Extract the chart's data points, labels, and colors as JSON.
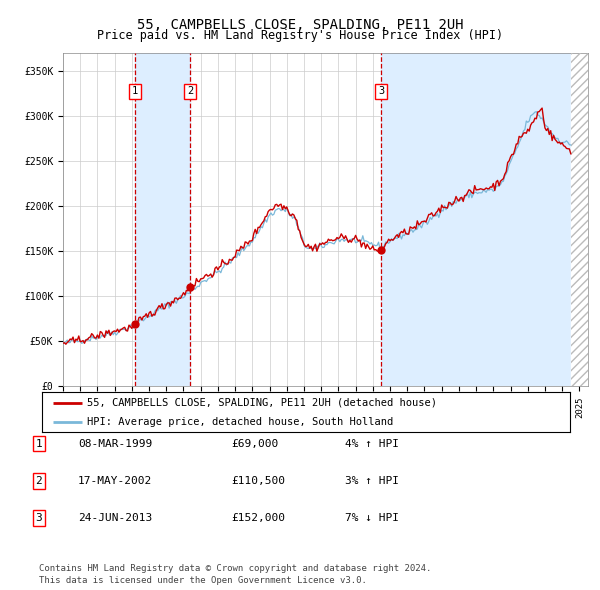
{
  "title": "55, CAMPBELLS CLOSE, SPALDING, PE11 2UH",
  "subtitle": "Price paid vs. HM Land Registry's House Price Index (HPI)",
  "xlim_start": 1995.0,
  "xlim_end": 2025.5,
  "ylim": [
    0,
    370000
  ],
  "yticks": [
    0,
    50000,
    100000,
    150000,
    200000,
    250000,
    300000,
    350000
  ],
  "ytick_labels": [
    "£0",
    "£50K",
    "£100K",
    "£150K",
    "£200K",
    "£250K",
    "£300K",
    "£350K"
  ],
  "sale_dates": [
    1999.19,
    2002.38,
    2013.48
  ],
  "sale_prices": [
    69000,
    110500,
    152000
  ],
  "sale_labels": [
    "1",
    "2",
    "3"
  ],
  "sale_label_info": [
    {
      "label": "1",
      "date": "08-MAR-1999",
      "price": "£69,000",
      "hpi": "4% ↑ HPI"
    },
    {
      "label": "2",
      "date": "17-MAY-2002",
      "price": "£110,500",
      "hpi": "3% ↑ HPI"
    },
    {
      "label": "3",
      "date": "24-JUN-2013",
      "price": "£152,000",
      "hpi": "7% ↓ HPI"
    }
  ],
  "legend_line1": "55, CAMPBELLS CLOSE, SPALDING, PE11 2UH (detached house)",
  "legend_line2": "HPI: Average price, detached house, South Holland",
  "footer": "Contains HM Land Registry data © Crown copyright and database right 2024.\nThis data is licensed under the Open Government Licence v3.0.",
  "hpi_color": "#7ab8d9",
  "price_color": "#cc0000",
  "dot_color": "#cc0000",
  "vline_color": "#cc0000",
  "shade_color": "#ddeeff",
  "grid_color": "#cccccc",
  "hatch_color": "#bbbbbb",
  "background_color": "#ffffff",
  "title_fontsize": 10,
  "subtitle_fontsize": 8.5,
  "axis_fontsize": 7,
  "legend_fontsize": 7.5,
  "table_fontsize": 8,
  "footer_fontsize": 6.5,
  "hatch_start": 2024.5,
  "hpi_key_x": [
    1995,
    1996,
    1997,
    1998,
    1999,
    2000,
    2001,
    2002,
    2002.5,
    2003,
    2004,
    2005,
    2006,
    2007,
    2007.5,
    2008,
    2008.5,
    2009,
    2009.5,
    2010,
    2011,
    2012,
    2013,
    2013.5,
    2014,
    2015,
    2016,
    2017,
    2018,
    2019,
    2020,
    2020.5,
    2021,
    2021.5,
    2022,
    2022.5,
    2023,
    2023.5,
    2024,
    2024.5,
    2025
  ],
  "hpi_key_y": [
    48000,
    51000,
    55000,
    60000,
    67000,
    78000,
    90000,
    100000,
    106000,
    115000,
    127000,
    143000,
    162000,
    190000,
    197000,
    195000,
    185000,
    157000,
    152000,
    155000,
    163000,
    162000,
    158000,
    155000,
    162000,
    170000,
    180000,
    196000,
    207000,
    215000,
    218000,
    225000,
    248000,
    270000,
    295000,
    305000,
    292000,
    278000,
    272000,
    268000,
    262000
  ],
  "red_key_x": [
    1995,
    1996,
    1997,
    1998,
    1999,
    1999.2,
    2000,
    2001,
    2002,
    2002.4,
    2003,
    2004,
    2005,
    2006,
    2007,
    2007.5,
    2008,
    2008.5,
    2009,
    2009.5,
    2010,
    2011,
    2012,
    2013,
    2013.5,
    2014,
    2015,
    2016,
    2017,
    2018,
    2019,
    2020,
    2020.5,
    2021,
    2021.5,
    2022,
    2022.8,
    2023,
    2023.5,
    2024,
    2024.5,
    2025
  ],
  "red_key_y": [
    48000,
    51500,
    56000,
    61500,
    66000,
    69000,
    80000,
    91000,
    102000,
    110500,
    119000,
    130000,
    146000,
    165000,
    196000,
    202000,
    198000,
    188000,
    158000,
    153000,
    158000,
    165000,
    164000,
    151000,
    152000,
    163000,
    172000,
    183000,
    198000,
    209000,
    218000,
    222000,
    230000,
    252000,
    276000,
    283000,
    310000,
    290000,
    275000,
    268000,
    262000,
    257000
  ]
}
